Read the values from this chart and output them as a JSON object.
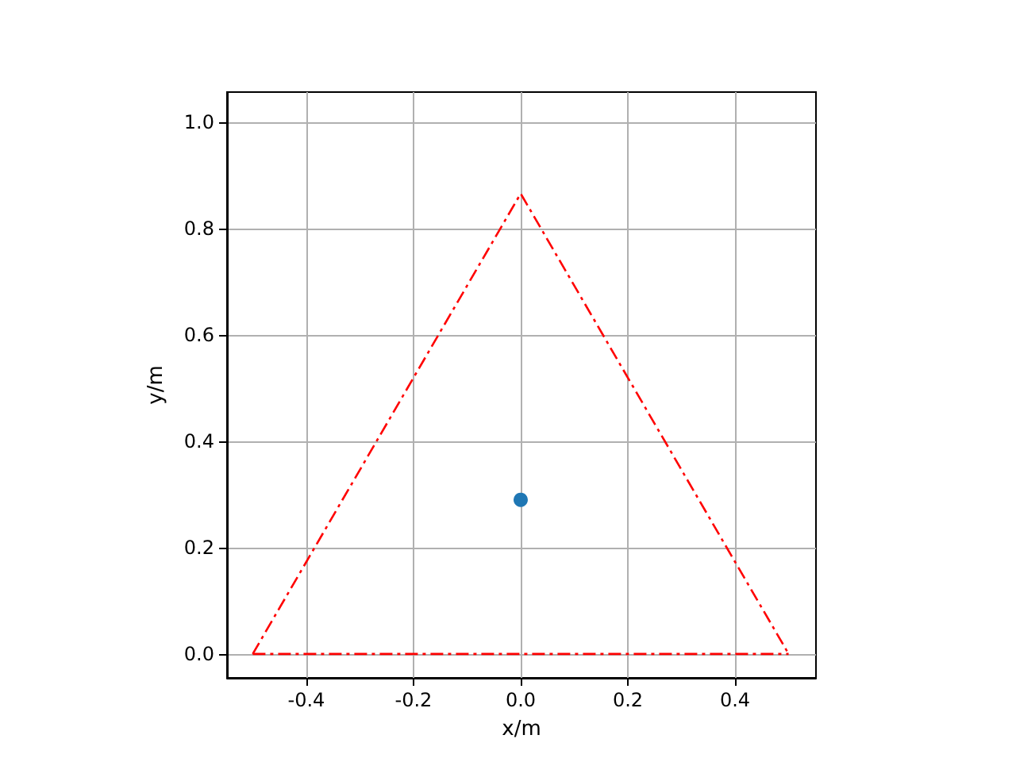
{
  "chart_data": {
    "type": "line",
    "xlabel": "x/m",
    "ylabel": "y/m",
    "series": [
      {
        "color": "#ff0000",
        "line_style": "dashed",
        "marker": "none",
        "x": [
          -0.5,
          0,
          0.5
        ],
        "values": [
          0,
          0.866,
          0
        ]
      },
      {
        "color": "#ff0000",
        "line_style": "dashed",
        "marker": "none",
        "x": [
          -0.5,
          0.5
        ],
        "values": [
          0,
          0
        ]
      },
      {
        "type": "scatter",
        "color": "#1f77b4",
        "marker": "circle",
        "x": [
          0
        ],
        "values": [
          0.29
        ]
      }
    ],
    "xlim": [
      -0.548,
      0.551
    ],
    "ylim": [
      -0.045,
      1.057
    ],
    "xticks": [
      -0.4,
      -0.2,
      {
        "value": 0,
        "label": "0.0"
      },
      0.2,
      0.4
    ],
    "yticks": [
      {
        "value": 0,
        "label": "0.0"
      },
      0.2,
      0.4,
      0.6,
      0.8,
      {
        "value": 1,
        "label": "1.0"
      }
    ],
    "grid": true
  }
}
